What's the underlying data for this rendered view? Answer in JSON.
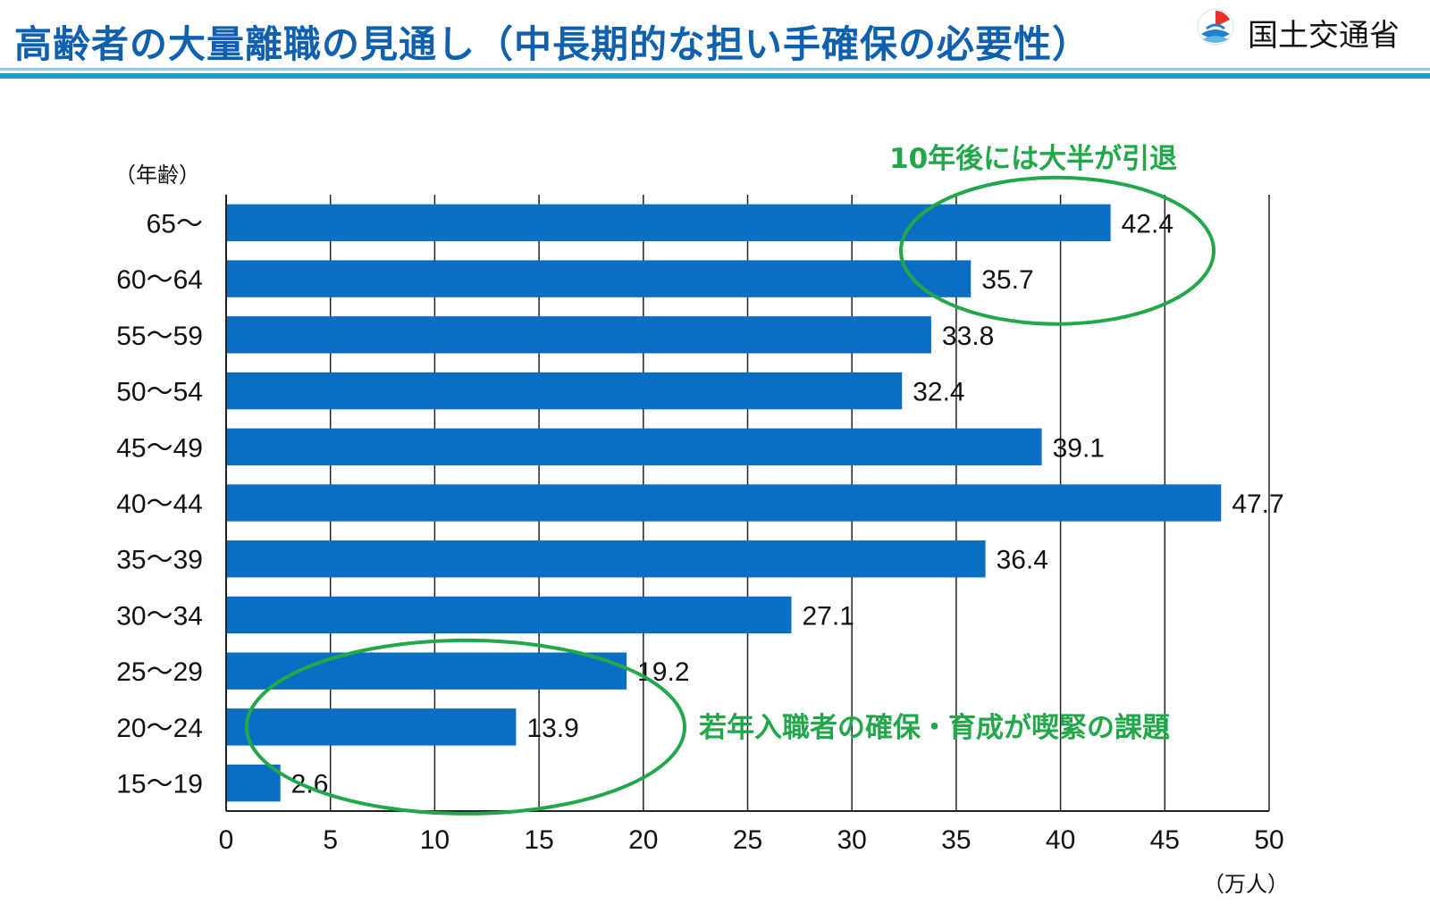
{
  "header": {
    "title": "高齢者の大量離職の見通し（中長期的な担い手確保の必要性）",
    "logo_text": "国土交通省",
    "title_color": "#1060b0",
    "rule_color": "#1a9ed8"
  },
  "chart_data": {
    "type": "bar",
    "orientation": "horizontal",
    "categories": [
      "65～",
      "60～64",
      "55～59",
      "50～54",
      "45～49",
      "40～44",
      "35～39",
      "30～34",
      "25～29",
      "20～24",
      "15～19"
    ],
    "values": [
      42.4,
      35.7,
      33.8,
      32.4,
      39.1,
      47.7,
      36.4,
      27.1,
      19.2,
      13.9,
      2.6
    ],
    "value_labels": [
      "42.4",
      "35.7",
      "33.8",
      "32.4",
      "39.1",
      "47.7",
      "36.4",
      "27.1",
      "19.2",
      "13.9",
      "2.6"
    ],
    "xlabel": "（万人）",
    "ylabel": "（年齢）",
    "xlim": [
      0,
      50
    ],
    "xticks": [
      0,
      5,
      10,
      15,
      20,
      25,
      30,
      35,
      40,
      45,
      50
    ],
    "grid": "vertical",
    "bar_color": "#0a6fc2",
    "annotations": [
      {
        "text": "10年後には大半が引退",
        "color": "#22a84a",
        "circled_categories": [
          "65～",
          "60～64"
        ]
      },
      {
        "text": "若年入職者の確保・育成が喫緊の課題",
        "color": "#22a84a",
        "circled_categories": [
          "25～29",
          "20～24",
          "15～19"
        ]
      }
    ]
  }
}
